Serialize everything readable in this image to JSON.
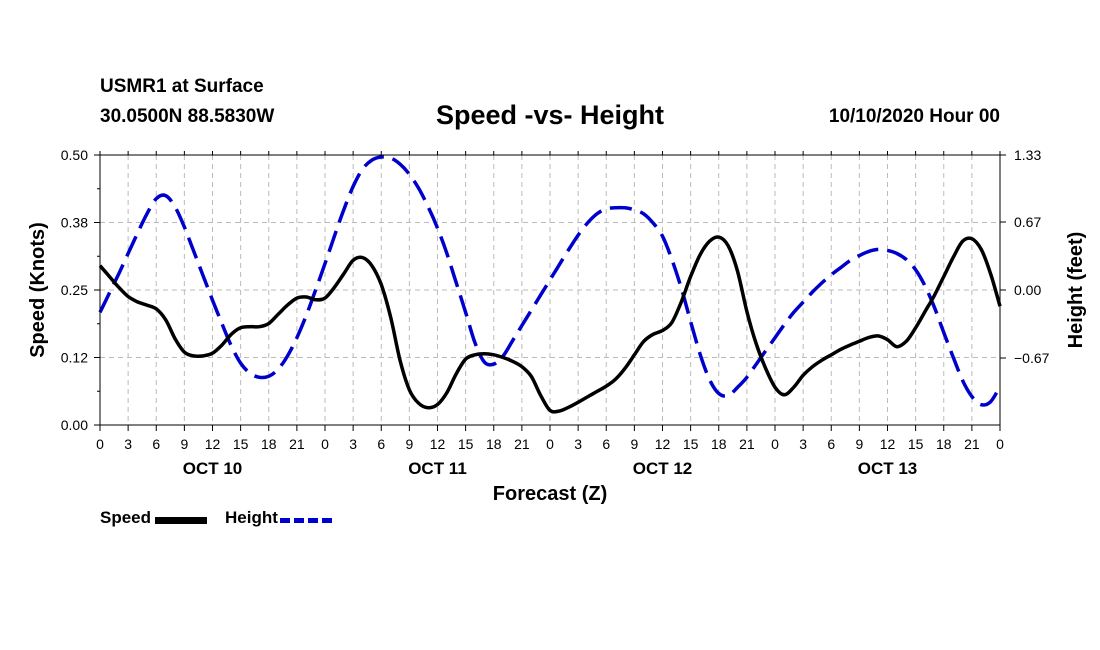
{
  "header": {
    "station": "USMR1 at Surface",
    "coords": "30.0500N 88.5830W",
    "title": "Speed -vs- Height",
    "datetime": "10/10/2020 Hour 00"
  },
  "legend": {
    "speed": "Speed",
    "height": "Height"
  },
  "colors": {
    "speed": "#000000",
    "height": "#0000cc",
    "grid": "#bbbbbb"
  },
  "chart_data": {
    "type": "line",
    "title": "Speed -vs- Height",
    "xlabel": "Forecast (Z)",
    "ylabel_left": "Speed (Knots)",
    "ylabel_right": "Height (feet)",
    "x_unit": "forecast hour",
    "xlim": [
      0,
      96
    ],
    "x_tick_step": 3,
    "x_tick_labels": [
      "0",
      "3",
      "6",
      "9",
      "12",
      "15",
      "18",
      "21",
      "0",
      "3",
      "6",
      "9",
      "12",
      "15",
      "18",
      "21",
      "0",
      "3",
      "6",
      "9",
      "12",
      "15",
      "18",
      "21",
      "0",
      "3",
      "6",
      "9",
      "12",
      "15",
      "18",
      "21",
      "0"
    ],
    "day_labels": [
      {
        "label": "OCT 10",
        "hour": 12
      },
      {
        "label": "OCT 11",
        "hour": 36
      },
      {
        "label": "OCT 12",
        "hour": 60
      },
      {
        "label": "OCT 13",
        "hour": 84
      }
    ],
    "ylim_left": [
      0,
      0.5
    ],
    "yticks_left": [
      "0.00",
      "0.12",
      "0.25",
      "0.38",
      "0.50"
    ],
    "ylim_right": [
      -1.33,
      1.33
    ],
    "yticks_right": [
      "-0.67",
      "0.00",
      "0.67",
      "1.33"
    ],
    "grid": true,
    "series": [
      {
        "name": "Speed",
        "axis": "left",
        "style": "solid",
        "x": [
          0,
          1,
          2,
          3,
          4,
          5,
          6,
          7,
          8,
          9,
          10,
          11,
          12,
          13,
          14,
          15,
          16,
          17,
          18,
          19,
          20,
          21,
          22,
          23,
          24,
          25,
          26,
          27,
          28,
          29,
          30,
          31,
          32,
          33,
          34,
          35,
          36,
          37,
          38,
          39,
          40,
          41,
          42,
          43,
          44,
          45,
          46,
          47,
          48,
          49,
          50,
          51,
          52,
          53,
          54,
          55,
          56,
          57,
          58,
          59,
          60,
          61,
          62,
          63,
          64,
          65,
          66,
          67,
          68,
          69,
          70,
          71,
          72,
          73,
          74,
          75,
          76,
          77,
          78,
          79,
          80,
          81,
          82,
          83,
          84,
          85,
          86,
          87,
          88,
          89,
          90,
          91,
          92,
          93,
          94,
          95,
          96
        ],
        "values": [
          0.295,
          0.275,
          0.255,
          0.238,
          0.228,
          0.222,
          0.215,
          0.195,
          0.16,
          0.135,
          0.128,
          0.128,
          0.133,
          0.148,
          0.168,
          0.18,
          0.182,
          0.182,
          0.188,
          0.205,
          0.222,
          0.235,
          0.237,
          0.232,
          0.235,
          0.255,
          0.28,
          0.305,
          0.31,
          0.295,
          0.26,
          0.2,
          0.12,
          0.065,
          0.04,
          0.032,
          0.038,
          0.06,
          0.095,
          0.122,
          0.13,
          0.132,
          0.13,
          0.125,
          0.118,
          0.108,
          0.09,
          0.055,
          0.027,
          0.026,
          0.033,
          0.042,
          0.052,
          0.062,
          0.072,
          0.085,
          0.105,
          0.13,
          0.155,
          0.168,
          0.175,
          0.19,
          0.228,
          0.275,
          0.315,
          0.34,
          0.348,
          0.332,
          0.285,
          0.21,
          0.15,
          0.105,
          0.07,
          0.056,
          0.07,
          0.092,
          0.108,
          0.12,
          0.13,
          0.14,
          0.148,
          0.155,
          0.162,
          0.165,
          0.158,
          0.145,
          0.155,
          0.18,
          0.21,
          0.24,
          0.275,
          0.31,
          0.34,
          0.345,
          0.325,
          0.28,
          0.22
        ]
      },
      {
        "name": "Height",
        "axis": "right",
        "style": "dashed",
        "x": [
          0,
          1,
          2,
          3,
          4,
          5,
          6,
          7,
          8,
          9,
          10,
          11,
          12,
          13,
          14,
          15,
          16,
          17,
          18,
          19,
          20,
          21,
          22,
          23,
          24,
          25,
          26,
          27,
          28,
          29,
          30,
          31,
          32,
          33,
          34,
          35,
          36,
          37,
          38,
          39,
          40,
          41,
          42,
          43,
          44,
          45,
          46,
          47,
          48,
          49,
          50,
          51,
          52,
          53,
          54,
          55,
          56,
          57,
          58,
          59,
          60,
          61,
          62,
          63,
          64,
          65,
          66,
          67,
          68,
          69,
          70,
          71,
          72,
          73,
          74,
          75,
          76,
          77,
          78,
          79,
          80,
          81,
          82,
          83,
          84,
          85,
          86,
          87,
          88,
          89,
          90,
          91,
          92,
          93,
          94,
          95,
          96
        ],
        "values": [
          -0.22,
          -0.03,
          0.16,
          0.36,
          0.56,
          0.75,
          0.9,
          0.93,
          0.82,
          0.62,
          0.38,
          0.14,
          -0.1,
          -0.33,
          -0.55,
          -0.72,
          -0.82,
          -0.86,
          -0.85,
          -0.78,
          -0.65,
          -0.47,
          -0.25,
          0.0,
          0.26,
          0.53,
          0.79,
          1.02,
          1.19,
          1.28,
          1.31,
          1.3,
          1.24,
          1.14,
          1.0,
          0.82,
          0.61,
          0.36,
          0.07,
          -0.22,
          -0.52,
          -0.71,
          -0.73,
          -0.65,
          -0.5,
          -0.35,
          -0.2,
          -0.05,
          0.1,
          0.25,
          0.4,
          0.54,
          0.66,
          0.75,
          0.8,
          0.81,
          0.81,
          0.79,
          0.75,
          0.66,
          0.53,
          0.3,
          0.02,
          -0.31,
          -0.63,
          -0.88,
          -1.02,
          -1.04,
          -0.96,
          -0.86,
          -0.73,
          -0.6,
          -0.47,
          -0.34,
          -0.22,
          -0.12,
          -0.02,
          0.07,
          0.15,
          0.22,
          0.29,
          0.34,
          0.38,
          0.4,
          0.39,
          0.36,
          0.3,
          0.2,
          0.04,
          -0.17,
          -0.42,
          -0.66,
          -0.89,
          -1.05,
          -1.13,
          -1.1,
          -0.95
        ]
      }
    ]
  }
}
